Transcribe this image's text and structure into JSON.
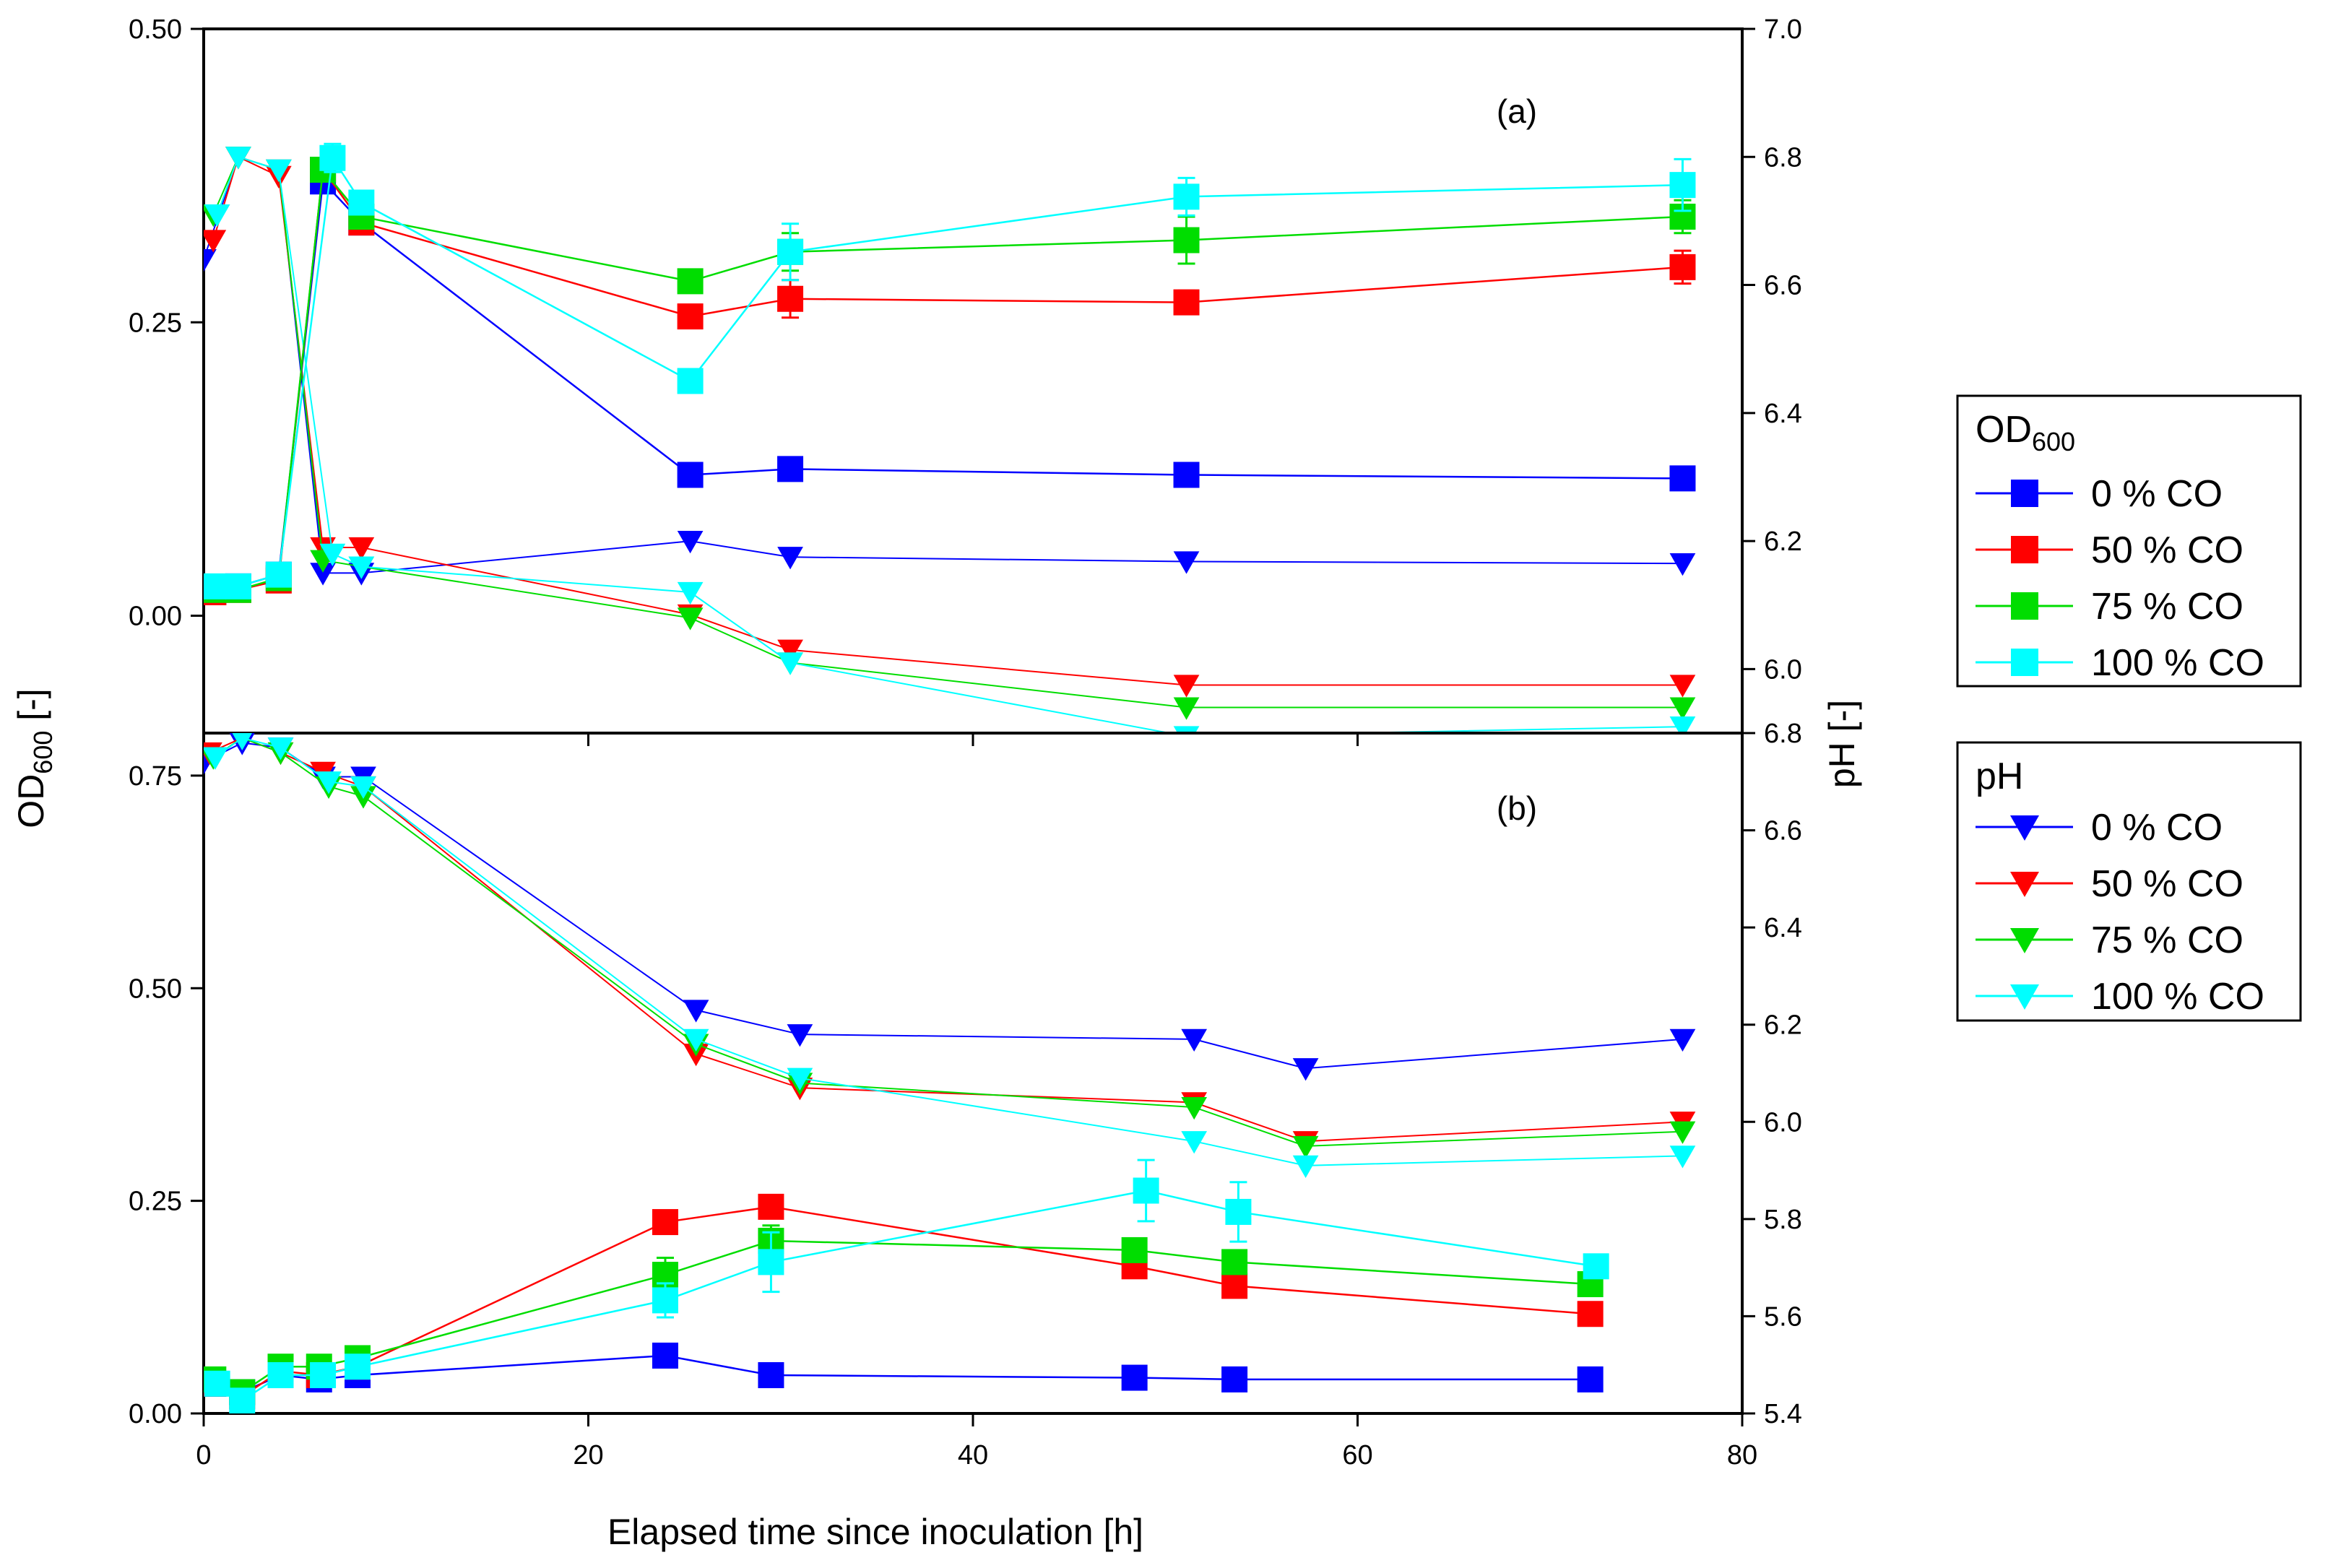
{
  "chart_data": {
    "type": "scatter",
    "colors": {
      "0% CO": "#0000ff",
      "50% CO": "#ff0000",
      "75% CO": "#00dd00",
      "100% CO": "#00ffff"
    },
    "xlabel": "Elapsed time since inoculation [h]",
    "xlim": [
      0,
      80
    ],
    "xticks": [
      "0",
      "20",
      "40",
      "60",
      "80"
    ],
    "left_label": {
      "main": "OD",
      "sub": "600",
      "tail": " [-]"
    },
    "right_label": "pH [-]",
    "legend": {
      "od_title": {
        "main": "OD",
        "sub": "600"
      },
      "od_items": [
        "0 % CO",
        "50 % CO",
        "75 % CO",
        "100 % CO"
      ],
      "ph_title": "pH",
      "ph_items": [
        "0 % CO",
        "50 % CO",
        "75 % CO",
        "100 % CO"
      ]
    },
    "panels": [
      {
        "tag": "(a)",
        "od_ylim": [
          -0.1,
          0.5
        ],
        "od_ticks": [
          "0.00",
          "0.25",
          "0.50"
        ],
        "od_tick_values": [
          0.0,
          0.25,
          0.5
        ],
        "ph_ylim": [
          5.9,
          7.0
        ],
        "ph_ticks": [
          "6.0",
          "6.2",
          "6.4",
          "6.6",
          "6.8",
          "7.0"
        ],
        "ph_tick_values": [
          6.0,
          6.2,
          6.4,
          6.6,
          6.8,
          7.0
        ],
        "od_series": [
          {
            "name": "0 % CO",
            "x": [
              0.5,
              1.8,
              3.9,
              6.2,
              8.2,
              25.3,
              30.5,
              51.1,
              76.9
            ],
            "y": [
              0.02,
              0.025,
              0.035,
              0.37,
              0.335,
              0.12,
              0.125,
              0.12,
              0.117
            ],
            "err": [
              0.005,
              0.005,
              0.005,
              0.01,
              0.01,
              0.008,
              0.008,
              0.006,
              0.006
            ]
          },
          {
            "name": "50 % CO",
            "x": [
              0.5,
              1.8,
              3.9,
              6.2,
              8.2,
              25.3,
              30.5,
              51.1,
              76.9
            ],
            "y": [
              0.02,
              0.022,
              0.03,
              0.38,
              0.335,
              0.255,
              0.27,
              0.267,
              0.297
            ],
            "err": [
              0.005,
              0.005,
              0.005,
              0.01,
              0.01,
              0.008,
              0.016,
              0.01,
              0.014
            ]
          },
          {
            "name": "75 % CO",
            "x": [
              0.5,
              1.8,
              3.9,
              6.2,
              8.2,
              25.3,
              30.5,
              51.1,
              76.9
            ],
            "y": [
              0.022,
              0.022,
              0.032,
              0.38,
              0.34,
              0.285,
              0.31,
              0.32,
              0.34
            ],
            "err": [
              0.005,
              0.005,
              0.005,
              0.01,
              0.01,
              0.008,
              0.016,
              0.02,
              0.014
            ]
          },
          {
            "name": "100 % CO",
            "x": [
              0.5,
              1.8,
              3.9,
              6.7,
              8.2,
              25.3,
              30.5,
              51.1,
              76.9
            ],
            "y": [
              0.025,
              0.025,
              0.035,
              0.39,
              0.352,
              0.2,
              0.31,
              0.357,
              0.367
            ],
            "err": [
              0.005,
              0.005,
              0.005,
              0.012,
              0.01,
              0.008,
              0.024,
              0.016,
              0.022
            ]
          }
        ],
        "ph_series": [
          {
            "name": "0 % CO",
            "x": [
              0.0,
              1.8,
              3.9,
              6.2,
              8.2,
              25.3,
              30.5,
              51.1,
              76.9
            ],
            "y": [
              6.64,
              6.8,
              6.78,
              6.15,
              6.15,
              6.2,
              6.175,
              6.168,
              6.165
            ],
            "err": [
              0.01,
              0.005,
              0.005,
              0.005,
              0.005,
              0.015,
              0.015,
              0.01,
              0.008
            ]
          },
          {
            "name": "50 % CO",
            "x": [
              0.5,
              1.8,
              3.9,
              6.2,
              8.2,
              25.3,
              30.5,
              51.1,
              76.9
            ],
            "y": [
              6.67,
              6.8,
              6.77,
              6.19,
              6.19,
              6.085,
              6.03,
              5.975,
              5.975
            ],
            "err": [
              0.01,
              0.005,
              0.005,
              0.005,
              0.005,
              0.015,
              0.01,
              0.008,
              0.01
            ]
          },
          {
            "name": "75 % CO",
            "x": [
              0.5,
              1.8,
              3.9,
              6.2,
              8.2,
              25.3,
              30.5,
              51.1,
              76.9
            ],
            "y": [
              6.71,
              6.8,
              6.78,
              6.17,
              6.16,
              6.08,
              6.01,
              5.94,
              5.94
            ],
            "err": [
              0.01,
              0.005,
              0.005,
              0.005,
              0.005,
              0.015,
              0.01,
              0.008,
              0.008
            ]
          },
          {
            "name": "100 % CO",
            "x": [
              0.7,
              1.8,
              3.9,
              6.7,
              8.2,
              25.3,
              30.5,
              51.1,
              76.9
            ],
            "y": [
              6.71,
              6.8,
              6.78,
              6.18,
              6.16,
              6.12,
              6.01,
              5.895,
              5.91
            ],
            "err": [
              0.01,
              0.005,
              0.005,
              0.005,
              0.005,
              0.01,
              0.01,
              0.008,
              0.008
            ]
          }
        ]
      },
      {
        "tag": "(b)",
        "od_ylim": [
          0.0,
          0.8
        ],
        "od_ticks": [
          "0.00",
          "0.25",
          "0.50",
          "0.75"
        ],
        "od_tick_values": [
          0.0,
          0.25,
          0.5,
          0.75
        ],
        "ph_ylim": [
          5.4,
          6.8
        ],
        "ph_ticks": [
          "5.4",
          "5.6",
          "5.8",
          "6.0",
          "6.2",
          "6.4",
          "6.6",
          "6.8"
        ],
        "ph_tick_values": [
          5.4,
          5.6,
          5.8,
          6.0,
          6.2,
          6.4,
          6.6,
          6.8
        ],
        "od_series": [
          {
            "name": "0 % CO",
            "x": [
              0.5,
              2.0,
              4.0,
              6.0,
              8.0,
              24.0,
              29.5,
              48.4,
              53.6,
              72.1
            ],
            "y": [
              0.035,
              0.025,
              0.045,
              0.04,
              0.045,
              0.068,
              0.045,
              0.042,
              0.04,
              0.04
            ],
            "err": [
              0.008,
              0.006,
              0.006,
              0.006,
              0.006,
              0.006,
              0.006,
              0.006,
              0.006,
              0.006
            ]
          },
          {
            "name": "50 % CO",
            "x": [
              0.5,
              2.0,
              4.0,
              6.0,
              8.0,
              24.0,
              29.5,
              48.4,
              53.6,
              72.1
            ],
            "y": [
              0.035,
              0.02,
              0.05,
              0.045,
              0.055,
              0.225,
              0.243,
              0.173,
              0.15,
              0.117
            ],
            "err": [
              0.008,
              0.006,
              0.006,
              0.006,
              0.006,
              0.008,
              0.008,
              0.008,
              0.008,
              0.008
            ]
          },
          {
            "name": "75 % CO",
            "x": [
              0.5,
              2.0,
              4.0,
              6.0,
              8.0,
              24.0,
              29.5,
              48.4,
              53.6,
              72.1
            ],
            "y": [
              0.04,
              0.025,
              0.055,
              0.055,
              0.065,
              0.163,
              0.203,
              0.192,
              0.178,
              0.152
            ],
            "err": [
              0.008,
              0.006,
              0.006,
              0.006,
              0.006,
              0.02,
              0.018,
              0.01,
              0.01,
              0.01
            ]
          },
          {
            "name": "100 % CO",
            "x": [
              0.7,
              2.0,
              4.0,
              6.2,
              8.0,
              24.0,
              29.5,
              49.0,
              53.8,
              72.4
            ],
            "y": [
              0.035,
              0.015,
              0.045,
              0.045,
              0.055,
              0.133,
              0.178,
              0.262,
              0.237,
              0.173
            ],
            "err": [
              0.008,
              0.006,
              0.006,
              0.006,
              0.006,
              0.02,
              0.035,
              0.036,
              0.035,
              0.01
            ]
          }
        ],
        "ph_series": [
          {
            "name": "0 % CO",
            "x": [
              0.0,
              2.0,
              4.0,
              6.2,
              8.3,
              25.6,
              31.0,
              51.5,
              57.3,
              76.9
            ],
            "y": [
              6.74,
              6.78,
              6.77,
              6.71,
              6.71,
              6.23,
              6.18,
              6.17,
              6.11,
              6.17
            ],
            "err": [
              0.02,
              0.005,
              0.005,
              0.005,
              0.005,
              0.005,
              0.005,
              0.005,
              0.005,
              0.005
            ]
          },
          {
            "name": "50 % CO",
            "x": [
              0.3,
              2.0,
              4.0,
              6.2,
              8.3,
              25.6,
              31.0,
              51.5,
              57.3,
              76.9
            ],
            "y": [
              6.76,
              6.79,
              6.76,
              6.72,
              6.69,
              6.14,
              6.07,
              6.04,
              5.96,
              6.0
            ],
            "err": [
              0.02,
              0.005,
              0.005,
              0.005,
              0.005,
              0.005,
              0.005,
              0.005,
              0.005,
              0.005
            ]
          },
          {
            "name": "75 % CO",
            "x": [
              0.5,
              2.0,
              4.0,
              6.5,
              8.3,
              25.6,
              31.0,
              51.5,
              57.3,
              76.9
            ],
            "y": [
              6.75,
              6.79,
              6.76,
              6.69,
              6.67,
              6.16,
              6.08,
              6.03,
              5.95,
              5.98
            ],
            "err": [
              0.02,
              0.005,
              0.005,
              0.005,
              0.005,
              0.01,
              0.01,
              0.008,
              0.008,
              0.008
            ]
          },
          {
            "name": "100 % CO",
            "x": [
              0.6,
              2.0,
              4.0,
              6.5,
              8.3,
              25.6,
              31.0,
              51.5,
              57.3,
              76.9
            ],
            "y": [
              6.75,
              6.79,
              6.77,
              6.7,
              6.69,
              6.17,
              6.09,
              5.96,
              5.91,
              5.93
            ],
            "err": [
              0.02,
              0.005,
              0.005,
              0.005,
              0.005,
              0.01,
              0.015,
              0.008,
              0.008,
              0.008
            ]
          }
        ]
      }
    ]
  }
}
